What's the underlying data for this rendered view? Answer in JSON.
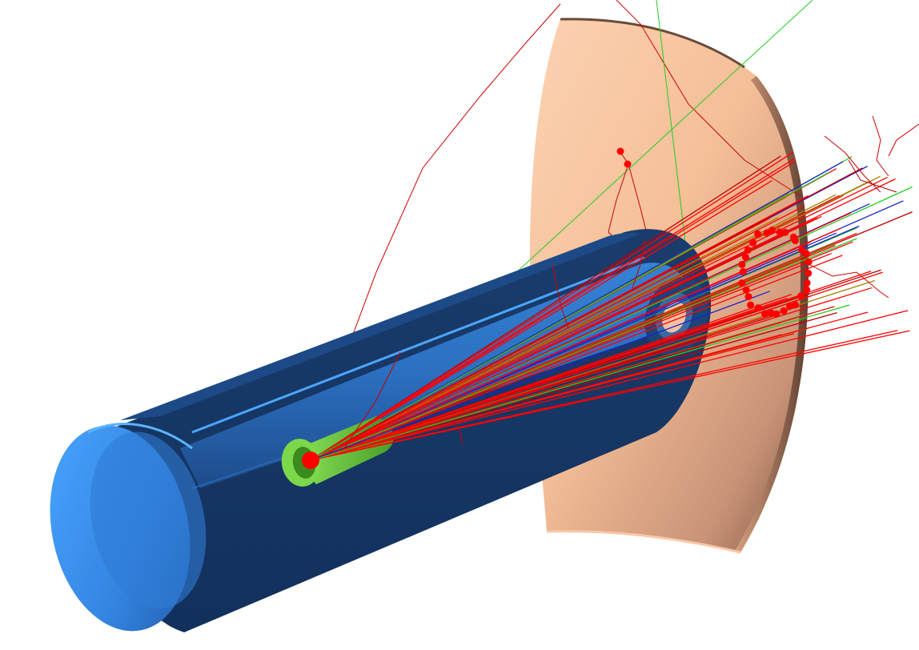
{
  "scene": {
    "background": "#ffffff",
    "colors": {
      "shell_light": "#f9c59e",
      "shell_dark": "#8a5c45",
      "shell_rim": "#6b4a3a",
      "cylinder_outer_dark": "#163764",
      "cylinder_outer_mid": "#1e4f8f",
      "cylinder_cap_light": "#3f9bf5",
      "cylinder_cap_dark": "#2a6ec2",
      "target_green": "#6fd33c",
      "target_green_dark": "#3f8f20",
      "track_red": "#ff0000",
      "track_darkred": "#c00000",
      "track_green": "#22cc22",
      "track_blue": "#2020d0",
      "track_olive": "#a08000",
      "hit_red": "#ff0000"
    }
  }
}
